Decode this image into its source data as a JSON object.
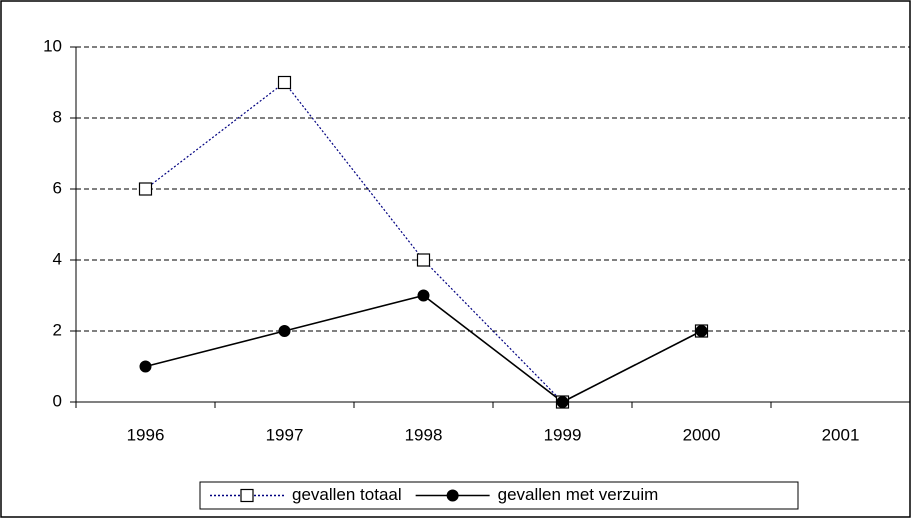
{
  "chart_data": {
    "type": "line",
    "categories": [
      "1996",
      "1997",
      "1998",
      "1999",
      "2000",
      "2001"
    ],
    "series": [
      {
        "name": "gevallen totaal",
        "color": "#000080",
        "marker": "square",
        "dash": "dotted",
        "values": [
          6,
          9,
          4,
          0,
          2,
          null
        ]
      },
      {
        "name": "gevallen met verzuim",
        "color": "#000000",
        "marker": "circle",
        "dash": "solid",
        "values": [
          1,
          2,
          3,
          0,
          2,
          null
        ]
      }
    ],
    "ylim": [
      0,
      10
    ],
    "yticks": [
      0,
      2,
      4,
      6,
      8,
      10
    ],
    "grid": true,
    "legend": "bottom"
  }
}
